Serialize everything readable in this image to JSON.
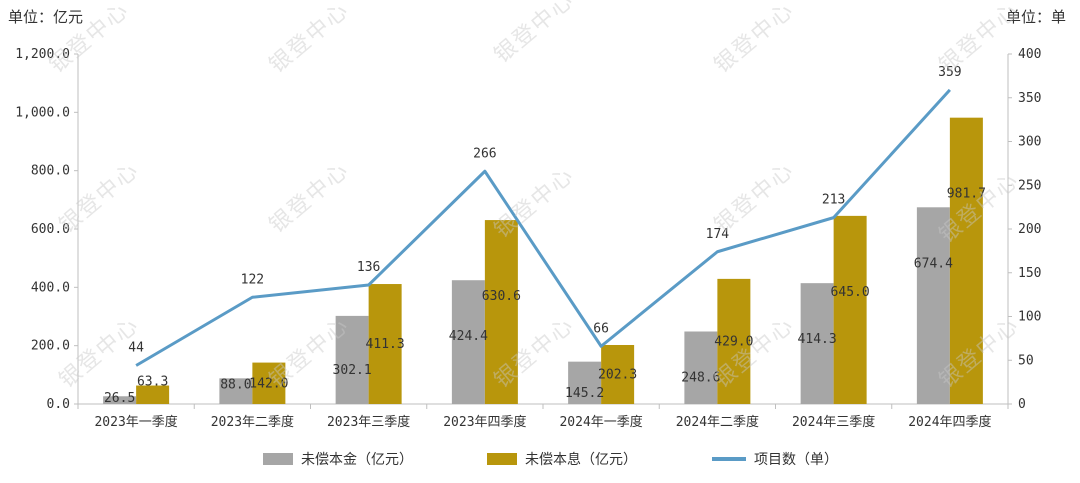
{
  "header": {
    "left_unit": "单位：亿元",
    "right_unit": "单位：单"
  },
  "watermark": "银登中心",
  "colors": {
    "principal": "#a6a6a6",
    "interest": "#b8960c",
    "count": "#5a9bc6",
    "axis": "#bfbfbf"
  },
  "chart_data": {
    "type": "bar",
    "categories": [
      "2023年一季度",
      "2023年二季度",
      "2023年三季度",
      "2023年四季度",
      "2024年一季度",
      "2024年二季度",
      "2024年三季度",
      "2024年四季度"
    ],
    "series": [
      {
        "name": "未偿本金（亿元）",
        "type": "bar",
        "axis": "left",
        "values": [
          26.5,
          88.0,
          302.1,
          424.4,
          145.2,
          248.6,
          414.3,
          674.4
        ],
        "labels": [
          "26.5",
          "88.0",
          "302.1",
          "424.4",
          "145.2",
          "248.6",
          "414.3",
          "674.4"
        ]
      },
      {
        "name": "未偿本息（亿元）",
        "type": "bar",
        "axis": "left",
        "values": [
          63.3,
          142.0,
          411.3,
          630.6,
          202.3,
          429.0,
          645.0,
          981.7
        ],
        "labels": [
          "63.3",
          "142.0",
          "411.3",
          "630.6",
          "202.3",
          "429.0",
          "645.0",
          "981.7"
        ]
      },
      {
        "name": "项目数（单）",
        "type": "line",
        "axis": "right",
        "values": [
          44,
          122,
          136,
          266,
          66,
          174,
          213,
          359
        ],
        "labels": [
          "44",
          "122",
          "136",
          "266",
          "66",
          "174",
          "213",
          "359"
        ]
      }
    ],
    "y_left": {
      "range": [
        0,
        1200
      ],
      "ticks": [
        0,
        200,
        400,
        600,
        800,
        1000,
        1200
      ],
      "tick_labels": [
        "0.0",
        "200.0",
        "400.0",
        "600.0",
        "800.0",
        "1,000.0",
        "1,200.0"
      ]
    },
    "y_right": {
      "range": [
        0,
        400
      ],
      "ticks": [
        0,
        50,
        100,
        150,
        200,
        250,
        300,
        350,
        400
      ],
      "tick_labels": [
        "0",
        "50",
        "100",
        "150",
        "200",
        "250",
        "300",
        "350",
        "400"
      ]
    },
    "grid": false,
    "legend": "bottom"
  }
}
